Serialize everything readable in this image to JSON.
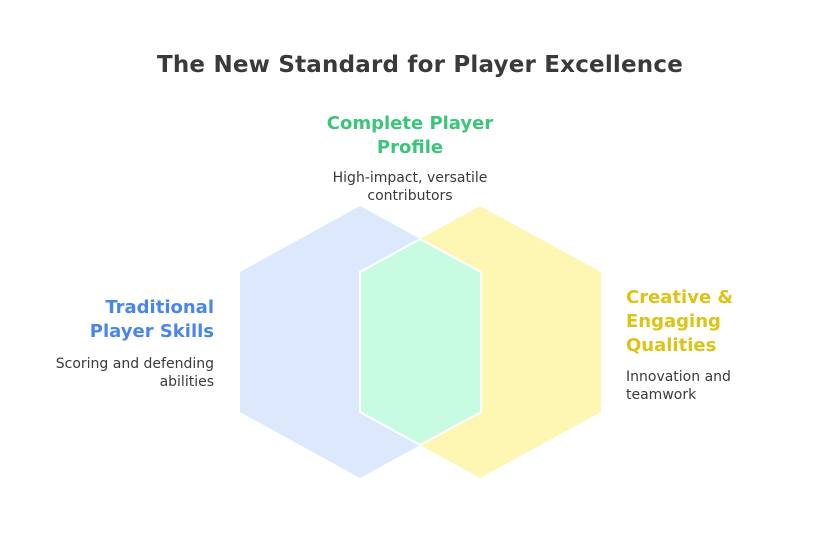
{
  "title": "The New Standard for Player Excellence",
  "colors": {
    "traditional": "#4a86e8",
    "complete": "#3cc57a",
    "creative": "#dcc316",
    "traditional_fill": "#dce8fc",
    "creative_fill": "#fef6b3",
    "overlap_fill": "#c7fce3"
  },
  "traditional": {
    "heading_line1": "Traditional",
    "heading_line2": "Player Skills",
    "desc_line1": "Scoring and defending",
    "desc_line2": "abilities"
  },
  "complete": {
    "heading_line1": "Complete Player",
    "heading_line2": "Profile",
    "desc_line1": "High-impact, versatile",
    "desc_line2": "contributors"
  },
  "creative": {
    "heading_line1": "Creative &",
    "heading_line2": "Engaging",
    "heading_line3": "Qualities",
    "desc_line1": "Innovation and",
    "desc_line2": "teamwork"
  }
}
